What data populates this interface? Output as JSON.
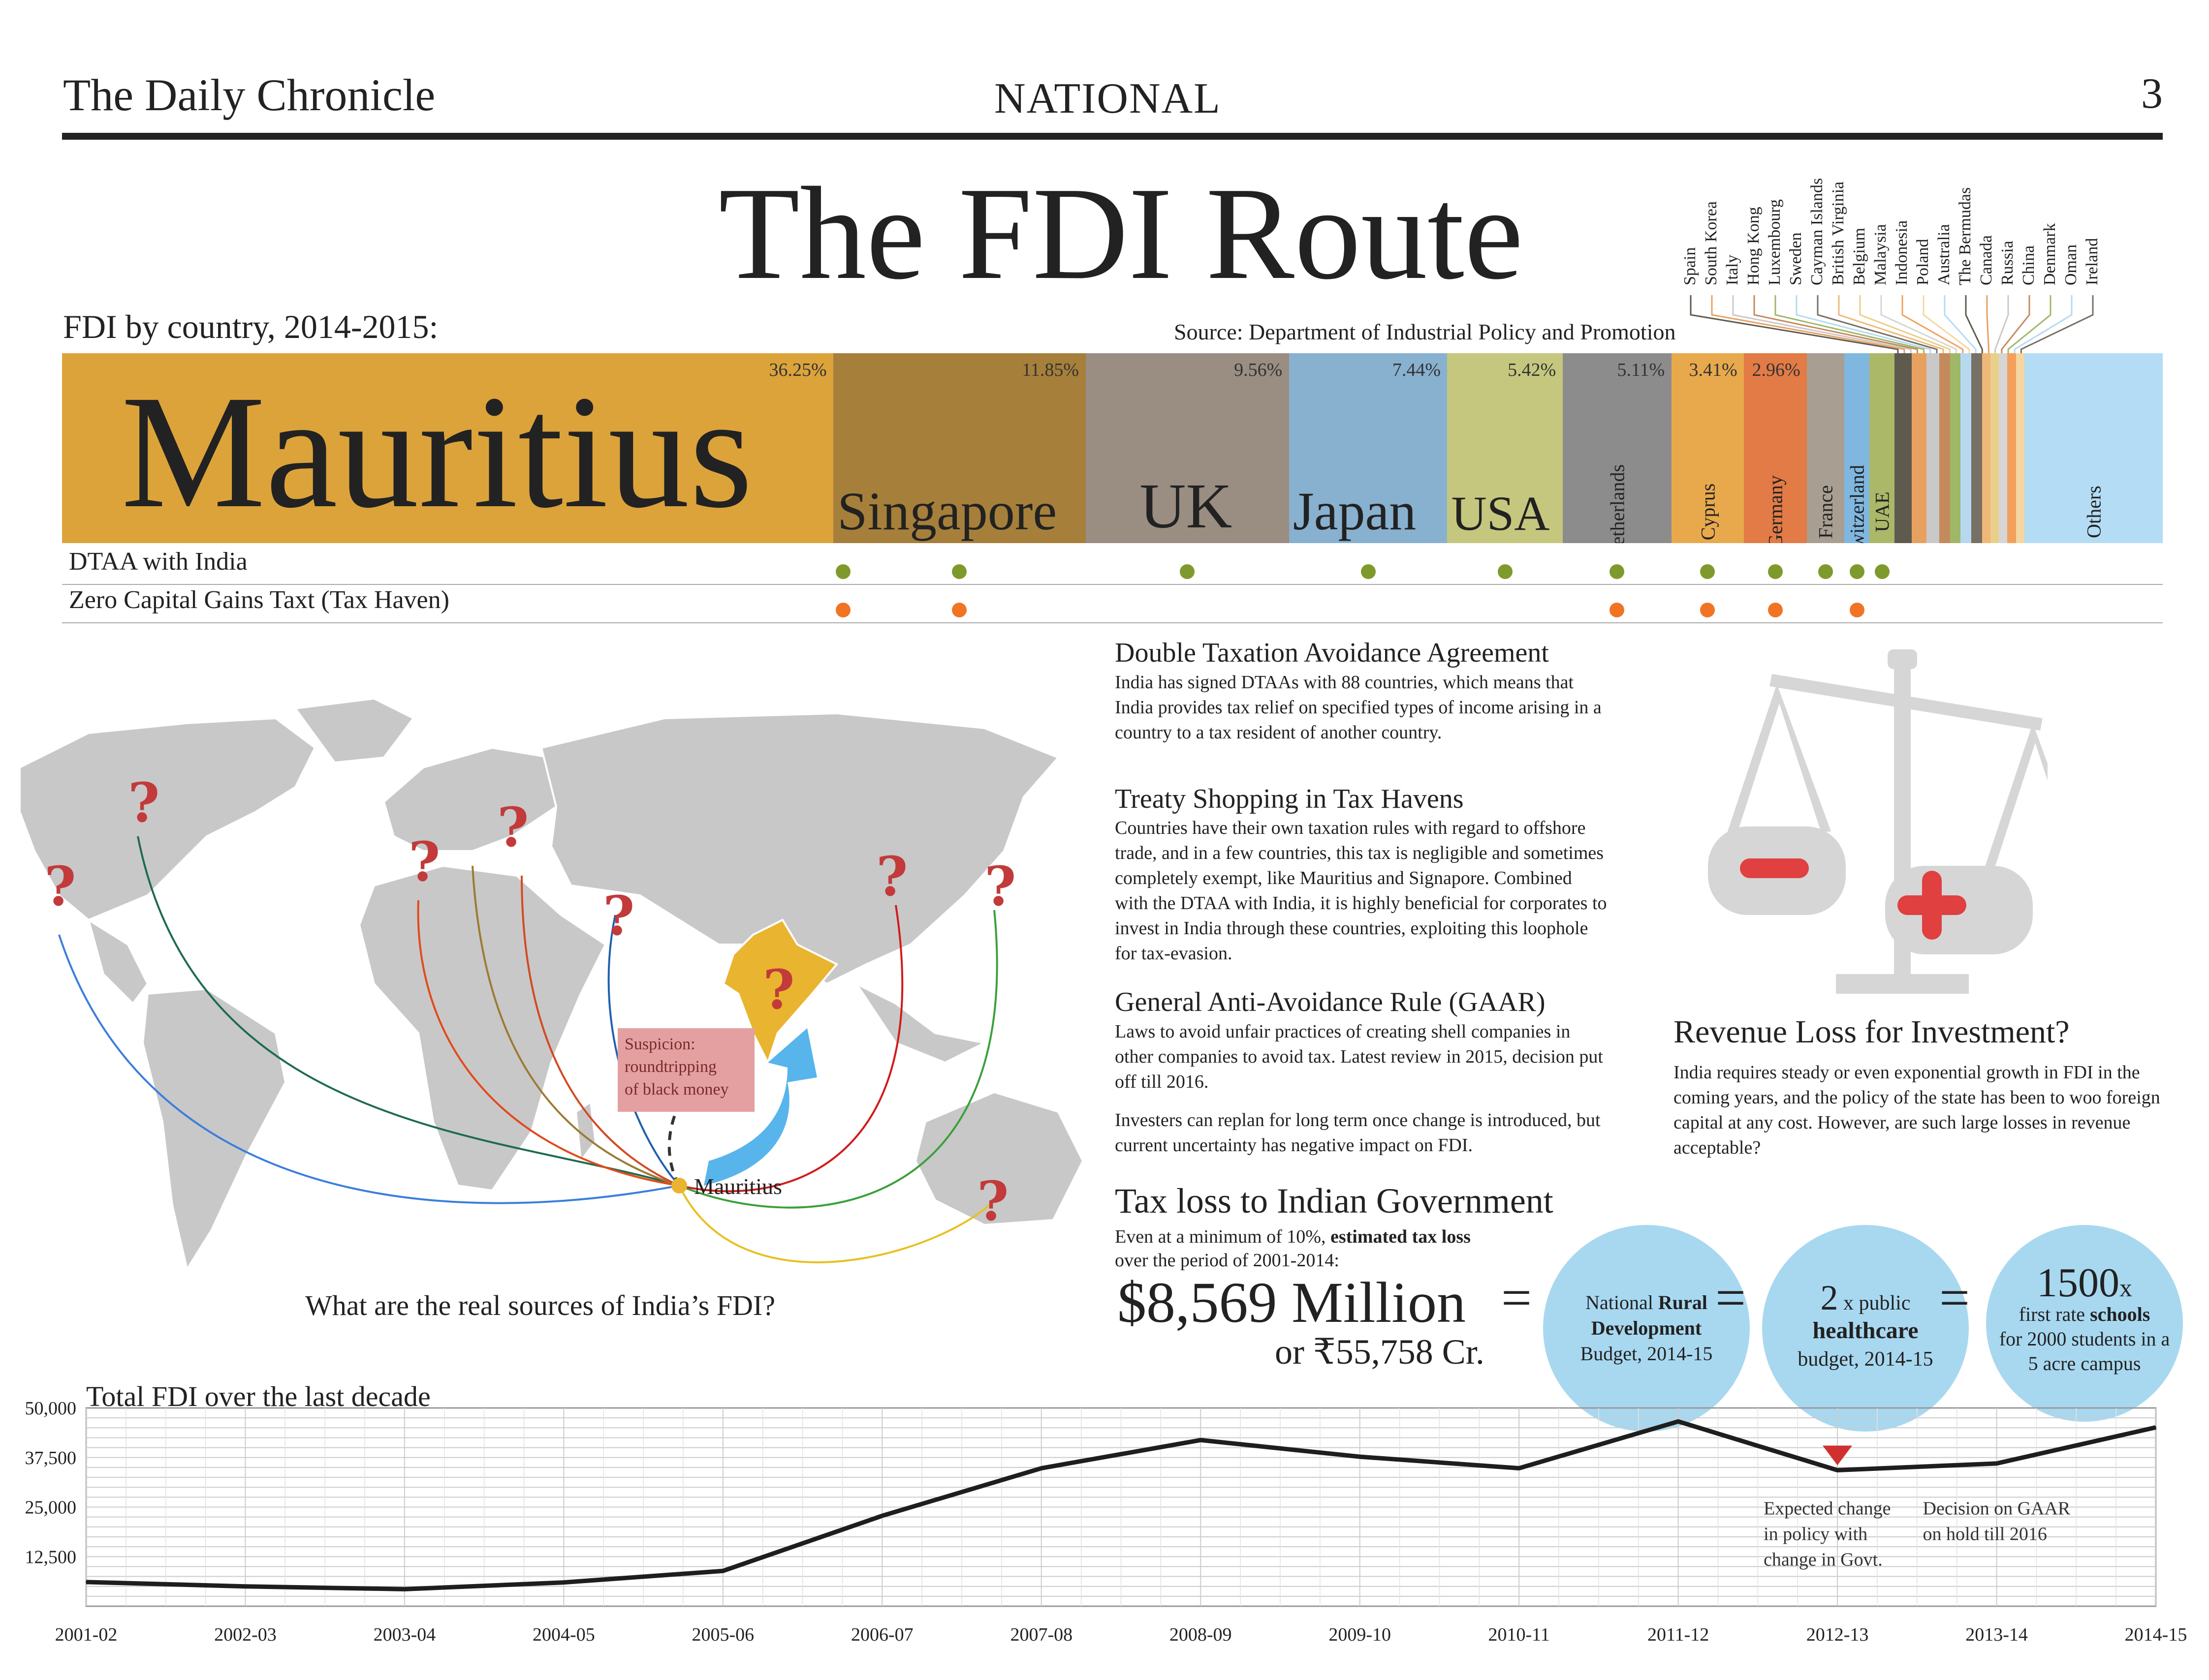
{
  "header": {
    "paper_name": "The Daily Chronicle",
    "section": "NATIONAL",
    "page_number": "3"
  },
  "title": "The FDI Route",
  "fdi_by_country": {
    "subtitle": "FDI by country, 2014-2015:",
    "source": "Source: Department of Industrial Policy and Promotion",
    "segments": [
      {
        "name": "Mauritius",
        "pct_label": "36.25%",
        "share": 36.25,
        "color": "#dca33b"
      },
      {
        "name": "Singapore",
        "pct_label": "11.85%",
        "share": 11.85,
        "color": "#a67f3a"
      },
      {
        "name": "UK",
        "pct_label": "9.56%",
        "share": 9.56,
        "color": "#9a8d82"
      },
      {
        "name": "Japan",
        "pct_label": "7.44%",
        "share": 7.44,
        "color": "#88b0cf"
      },
      {
        "name": "USA",
        "pct_label": "5.42%",
        "share": 5.42,
        "color": "#c5c77e"
      },
      {
        "name": "Netherlands",
        "pct_label": "5.11%",
        "share": 5.11,
        "color": "#8c8c8c"
      },
      {
        "name": "Cyprus",
        "pct_label": "3.41%",
        "share": 3.41,
        "color": "#e8a94c"
      },
      {
        "name": "Germany",
        "pct_label": "2.96%",
        "share": 2.96,
        "color": "#e27b45"
      },
      {
        "name": "France",
        "pct_label": "",
        "share": 1.76,
        "color": "#a99e92"
      },
      {
        "name": "Switzerland",
        "pct_label": "",
        "share": 1.18,
        "color": "#7fb7e0"
      },
      {
        "name": "UAE",
        "pct_label": "",
        "share": 1.18,
        "color": "#aab868"
      },
      {
        "name": "",
        "pct_label": "",
        "share": 0.8,
        "color": "#5e5a4e"
      },
      {
        "name": "",
        "pct_label": "",
        "share": 0.7,
        "color": "#e8a060"
      },
      {
        "name": "",
        "pct_label": "",
        "share": 0.6,
        "color": "#c9c9c9"
      },
      {
        "name": "",
        "pct_label": "",
        "share": 0.5,
        "color": "#c58a5c"
      },
      {
        "name": "",
        "pct_label": "",
        "share": 0.5,
        "color": "#9fb867"
      },
      {
        "name": "",
        "pct_label": "",
        "share": 0.5,
        "color": "#b6d9ef"
      },
      {
        "name": "",
        "pct_label": "",
        "share": 0.5,
        "color": "#777064"
      },
      {
        "name": "",
        "pct_label": "",
        "share": 0.4,
        "color": "#f0b878"
      },
      {
        "name": "",
        "pct_label": "",
        "share": 0.4,
        "color": "#e9d08a"
      },
      {
        "name": "",
        "pct_label": "",
        "share": 0.4,
        "color": "#d6d6d6"
      },
      {
        "name": "",
        "pct_label": "",
        "share": 0.4,
        "color": "#f2a05c"
      },
      {
        "name": "",
        "pct_label": "",
        "share": 0.4,
        "color": "#f5d6a0"
      },
      {
        "name": "Others",
        "pct_label": "",
        "share": 6.5,
        "color": "#b4dcf4"
      }
    ],
    "minor_countries": [
      "Spain",
      "South Korea",
      "Italy",
      "Hong Kong",
      "Luxembourg",
      "Sweden",
      "Cayman Islands",
      "British Virginia",
      "Belgium",
      "Malaysia",
      "Indonesia",
      "Poland",
      "Australia",
      "The Bermudas",
      "Canada",
      "Russia",
      "China",
      "Denmark",
      "Oman",
      "Ireland"
    ],
    "rows": [
      {
        "label": "DTAA with India",
        "color": "#7f9a2c",
        "marks": [
          "Mauritius",
          "Singapore",
          "UK",
          "Japan",
          "USA",
          "Netherlands",
          "Cyprus",
          "Germany",
          "France",
          "Switzerland",
          "UAE"
        ]
      },
      {
        "label": "Zero Capital Gains Taxt (Tax Haven)",
        "color": "#f07424",
        "marks": [
          "Mauritius",
          "Singapore",
          "Netherlands",
          "Cyprus",
          "Germany",
          "Switzerland"
        ]
      }
    ]
  },
  "map": {
    "question": "What are the real sources of India’s FDI?",
    "hub_label": "Mauritius",
    "suspicion_lines": [
      "Suspicion:",
      "roundtripping",
      "of black money"
    ],
    "question_mark": "?"
  },
  "articles": {
    "dtaa": {
      "heading": "Double Taxation Avoidance Agreement",
      "body": "India has signed DTAAs with 88 countries, which means that India provides tax relief on specified types of income arising in a country to a tax resident of another country."
    },
    "treaty": {
      "heading": "Treaty Shopping in Tax Havens",
      "body": "Countries have their own taxation rules with regard to offshore trade, and in a few countries, this tax is negligible and sometimes completely exempt, like Mauritius and Signapore. Combined with the DTAA with India, it is highly beneficial for corporates to invest in India through these countries, exploiting this loophole for tax-evasion."
    },
    "gaar": {
      "heading": "General Anti-Avoidance Rule (GAAR)",
      "body": "Laws to avoid unfair practices of  creating shell companies in other companies to avoid tax. Latest review in 2015, decision put off till 2016.",
      "body2": "Investers can replan for long term once change is introduced, but current uncertainty has negative impact on FDI."
    },
    "revenue": {
      "heading": "Revenue Loss for Investment?",
      "body": "India requires steady or even exponential growth in FDI in the coming years, and the policy of the state has been to woo foreign capital at any cost. However, are such large losses in revenue acceptable?"
    }
  },
  "tax_loss": {
    "heading": "Tax loss to Indian Government",
    "sub1": "Even at a minimum of 10%, ",
    "sub1_bold": "estimated tax loss",
    "sub2": "over the period of 2001-2014:",
    "amount": "$8,569 Million",
    "amount_alt": "or ₹55,758 Cr.",
    "equals": "=",
    "circles": [
      {
        "pre": "National ",
        "bold": "Rural Development",
        "post": "Budget, 2014-15"
      },
      {
        "big": "2",
        "pre": " x public",
        "bold": "healthcare",
        "post": "budget, 2014-15"
      },
      {
        "big": "1500",
        "pre": "x",
        "line2_pre": "first rate ",
        "bold": "schools",
        "post": "for 2000 students in a 5 acre campus"
      }
    ]
  },
  "chart_data": {
    "type": "line",
    "title": "Total FDI over the last decade",
    "categories": [
      "2001-02",
      "2002-03",
      "2003-04",
      "2004-05",
      "2005-06",
      "2006-07",
      "2007-08",
      "2008-09",
      "2009-10",
      "2010-11",
      "2011-12",
      "2012-13",
      "2013-14",
      "2014-15"
    ],
    "values": [
      6100,
      5000,
      4300,
      6000,
      8900,
      22800,
      34800,
      41900,
      37700,
      34800,
      46600,
      34300,
      36000,
      45100
    ],
    "ylim": [
      0,
      50000
    ],
    "yticks": [
      "12,500",
      "25,000",
      "37,500",
      "50,000"
    ],
    "ytick_values": [
      12500,
      25000,
      37500,
      50000
    ],
    "grid": true,
    "annotations": [
      {
        "text_lines": [
          "Expected change",
          "in policy with",
          "change in Govt."
        ],
        "category": "2012-13"
      },
      {
        "text_lines": [
          "Decision on GAAR",
          "on hold till 2016"
        ],
        "category": "2013-14"
      }
    ],
    "marker_category": "2012-13",
    "line_color": "#1e1e1e",
    "marker_color": "#d03030"
  }
}
